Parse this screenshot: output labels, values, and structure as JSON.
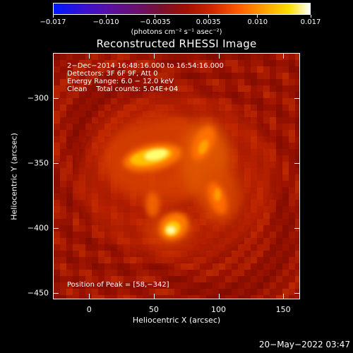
{
  "colorbar": {
    "ticks": [
      "−0.017",
      "−0.010",
      "−0.0035",
      "0.0035",
      "0.010",
      "0.017"
    ],
    "tick_values": [
      -0.017,
      -0.01,
      -0.0035,
      0.0035,
      0.01,
      0.017
    ],
    "range": [
      -0.017,
      0.017
    ],
    "units_label": "(photons cm⁻² s⁻¹ asec⁻²)",
    "colormap": "rainbow-blue-purple-red-yellow-white"
  },
  "title": "Reconstructed RHESSI Image",
  "info": {
    "line1": "2−Dec−2014 16:48:16.000 to 16:54:16.000",
    "line2": "Detectors: 3F 6F 9F, Att 0",
    "line3": "Energy Range: 6.0 − 12.0 keV",
    "line4": "Clean    Total counts: 5.04E+04",
    "peak": "Position of Peak = [58,−342]"
  },
  "axes": {
    "xlabel": "Heliocentric X (arcsec)",
    "ylabel": "Heliocentric Y (arcsec)",
    "xticks": [
      "0",
      "50",
      "100",
      "150"
    ],
    "xtick_values": [
      0,
      50,
      100,
      150
    ],
    "yticks": [
      "−300",
      "−350",
      "−400",
      "−450"
    ],
    "ytick_values": [
      -300,
      -350,
      -400,
      -450
    ],
    "xlim": [
      -28,
      163
    ],
    "ylim": [
      -455,
      -265
    ]
  },
  "datestamp": "20−May−2022 03:47"
}
